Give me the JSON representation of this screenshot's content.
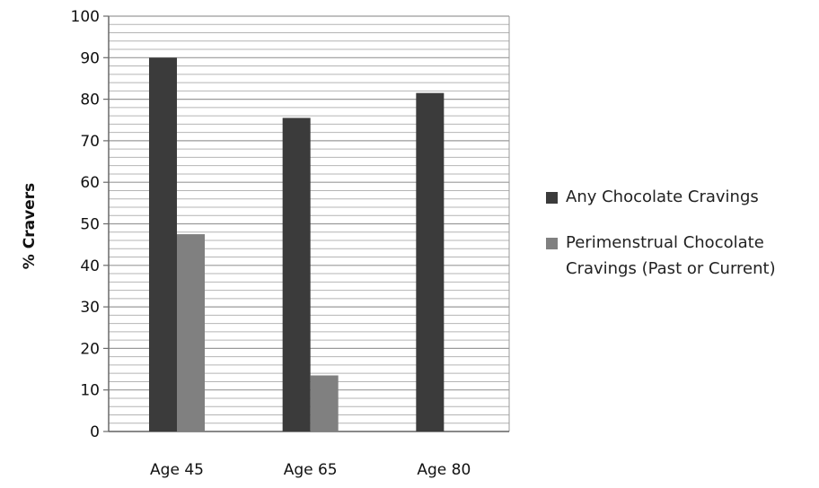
{
  "chart_data": {
    "type": "bar",
    "title": "",
    "xlabel": "",
    "ylabel": "% Cravers",
    "ylim": [
      0,
      100
    ],
    "yticks": [
      0,
      10,
      20,
      30,
      40,
      50,
      60,
      70,
      80,
      90,
      100
    ],
    "categories": [
      "Age 45",
      "Age 65",
      "Age 80"
    ],
    "series": [
      {
        "name": "Any Chocolate Cravings",
        "color": "#3b3b3b",
        "values": [
          90,
          75.5,
          81.5
        ]
      },
      {
        "name": "Perimenstrual Chocolate Cravings (Past or Current)",
        "color": "#808080",
        "values": [
          47.5,
          13.5,
          null
        ]
      }
    ],
    "grid": true,
    "legend_position": "right"
  }
}
